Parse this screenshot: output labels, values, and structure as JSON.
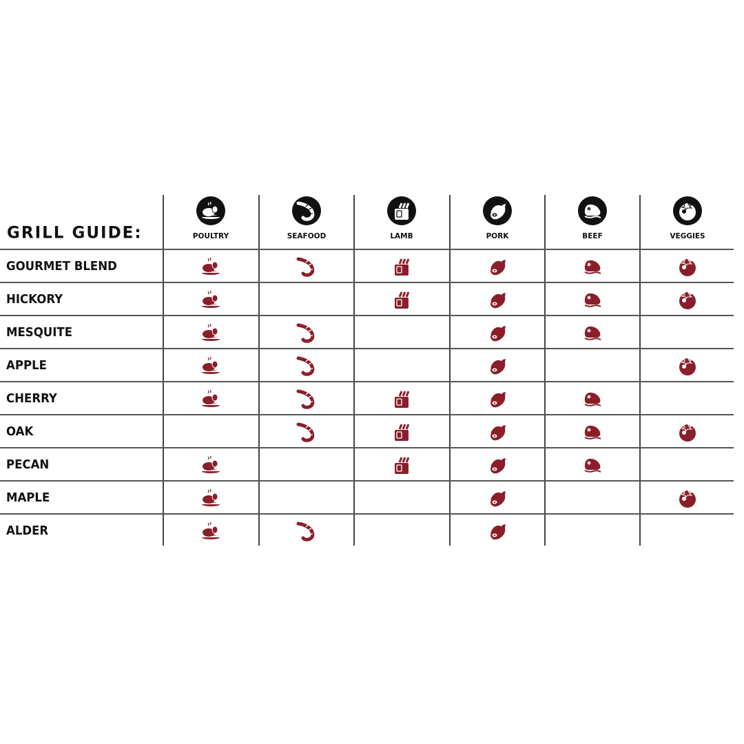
{
  "title": "GRILL GUIDE:",
  "colors": {
    "accent": "#8b1e2b",
    "header_icon_bg": "#111111",
    "line": "#444444"
  },
  "chart_data": {
    "type": "table",
    "columns": [
      {
        "label": "POULTRY",
        "icon": "poultry-icon"
      },
      {
        "label": "SEAFOOD",
        "icon": "shrimp-icon"
      },
      {
        "label": "LAMB",
        "icon": "lamb-rack-icon"
      },
      {
        "label": "PORK",
        "icon": "ham-icon"
      },
      {
        "label": "BEEF",
        "icon": "steak-icon"
      },
      {
        "label": "VEGGIES",
        "icon": "tomato-icon"
      }
    ],
    "rows": [
      {
        "label": "GOURMET BLEND",
        "values": [
          true,
          true,
          true,
          true,
          true,
          true
        ]
      },
      {
        "label": "HICKORY",
        "values": [
          true,
          false,
          true,
          true,
          true,
          true
        ]
      },
      {
        "label": "MESQUITE",
        "values": [
          true,
          true,
          false,
          true,
          true,
          false
        ]
      },
      {
        "label": "APPLE",
        "values": [
          true,
          true,
          false,
          true,
          false,
          true
        ]
      },
      {
        "label": "CHERRY",
        "values": [
          true,
          true,
          true,
          true,
          true,
          false
        ]
      },
      {
        "label": "OAK",
        "values": [
          false,
          true,
          true,
          true,
          true,
          true
        ]
      },
      {
        "label": "PECAN",
        "values": [
          true,
          false,
          true,
          true,
          true,
          false
        ]
      },
      {
        "label": "MAPLE",
        "values": [
          true,
          false,
          false,
          true,
          false,
          true
        ]
      },
      {
        "label": "ALDER",
        "values": [
          true,
          true,
          false,
          true,
          false,
          false
        ]
      }
    ]
  }
}
